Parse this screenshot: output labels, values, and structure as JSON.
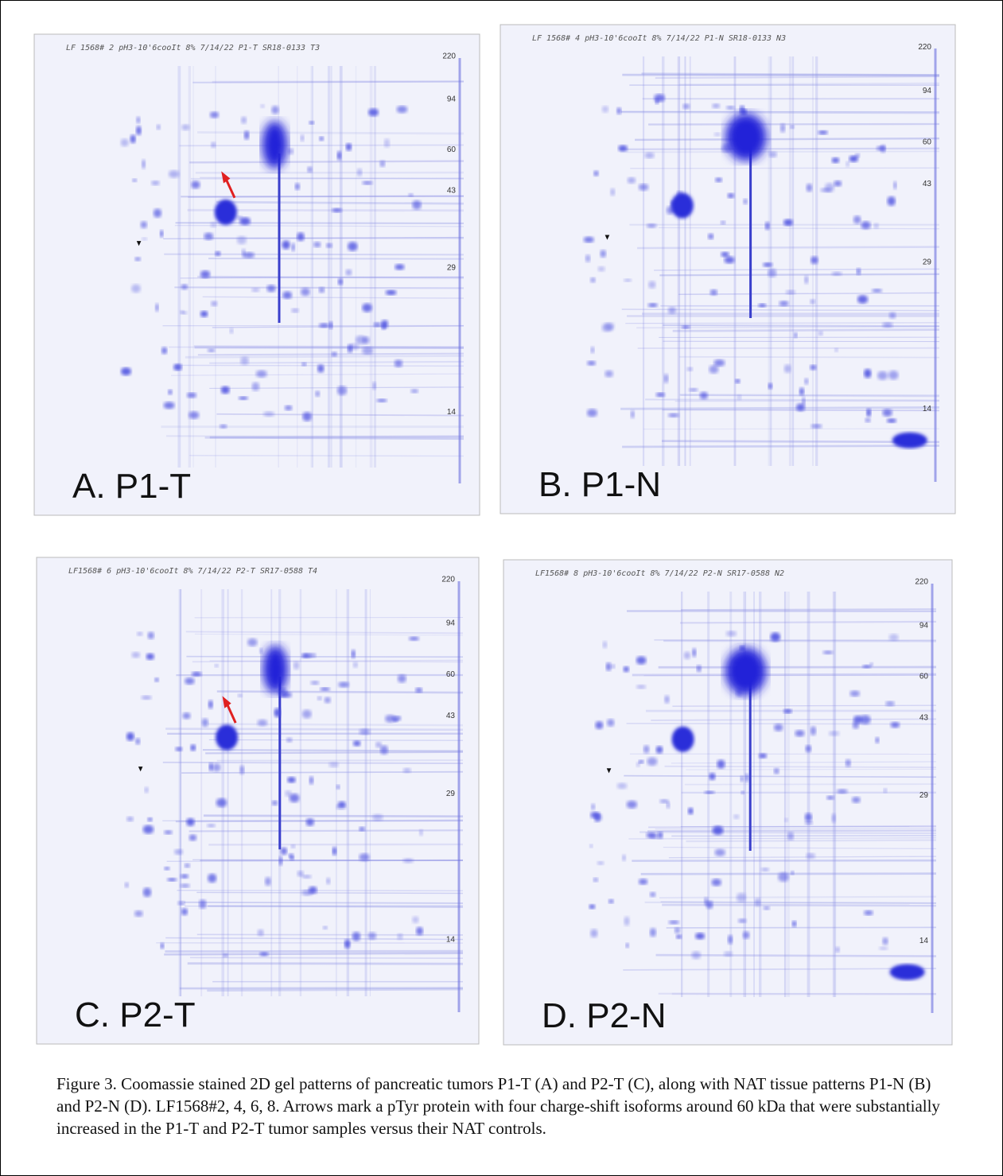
{
  "figure": {
    "panels": [
      {
        "label": "A. P1-T",
        "header": "LF 1568# 2  pH3-10'6cooIt 8% 7/14/22  P1-T  SR18-0133  T3",
        "markers": [
          "220",
          "94",
          "60",
          "43",
          "29",
          "14"
        ]
      },
      {
        "label": "B. P1-N",
        "header": "LF 1568# 4  pH3-10'6cooIt 8% 7/14/22  P1-N  SR18-0133  N3",
        "markers": [
          "220",
          "94",
          "60",
          "43",
          "29",
          "14"
        ]
      },
      {
        "label": "C. P2-T",
        "header": "LF1568# 6  pH3-10'6cooIt 8% 7/14/22  P2-T  SR17-0588  T4",
        "markers": [
          "220",
          "94",
          "60",
          "43",
          "29",
          "14"
        ]
      },
      {
        "label": "D. P2-N",
        "header": "LF1568# 8  pH3-10'6cooIt 8% 7/14/22  P2-N  SR17-0588  N2",
        "markers": [
          "220",
          "94",
          "60",
          "43",
          "29",
          "14"
        ]
      }
    ],
    "caption": "Figure 3. Coomassie stained 2D gel patterns of pancreatic tumors P1-T (A) and P2-T (C), along with NAT tissue patterns P1-N (B) and P2-N (D). LF1568#2, 4, 6, 8. Arrows mark a pTyr protein with four charge-shift isoforms around 60 kDa that were substantially increased in the P1-T and P2-T tumor samples versus their NAT controls."
  }
}
